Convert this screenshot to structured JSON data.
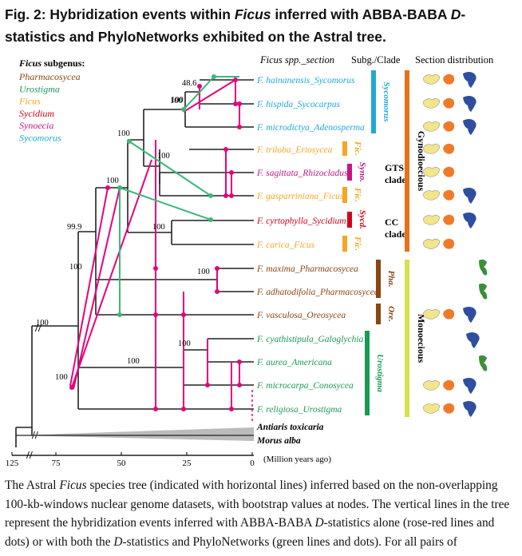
{
  "figure": {
    "title_prefix": "Fig. 2: Hybridization events within ",
    "title_genus": "Ficus",
    "title_mid": " inferred with ABBA-BABA ",
    "title_d": "D",
    "title_suffix": "-statistics and PhyloNetworks exhibited on the Astral tree.",
    "caption_p1": "The Astral ",
    "caption_genus": "Ficus",
    "caption_p2": " species tree (indicated with horizontal lines) inferred based on the non-overlapping 100-kb-windows nuclear genome datasets, with bootstrap values at nodes. The vertical lines in the tree represent the hybridization events inferred with ABBA-BABA ",
    "caption_d1": "D",
    "caption_p3": "-statistics alone (rose-red lines and dots) or with both the ",
    "caption_d2": "D",
    "caption_p4": "-statistics and PhyloNetworks (green lines and dots). For all pairs of"
  },
  "headers": {
    "species": "Ficus spp._section",
    "subg_clade": "Subg./Clade",
    "distribution": "Section distribution"
  },
  "legend": {
    "title": "Ficus subgenus:",
    "items": [
      {
        "label": "Pharmacosycea",
        "color": "#8b4513"
      },
      {
        "label": "Urostigma",
        "color": "#1a9a55"
      },
      {
        "label": "Ficus",
        "color": "#f5a623"
      },
      {
        "label": "Sycidium",
        "color": "#d0021b"
      },
      {
        "label": "Synoecia",
        "color": "#c71585"
      },
      {
        "label": "Sycomorus",
        "color": "#1fa8d8"
      }
    ]
  },
  "taxa": [
    {
      "label": "F. hainanensis_Sycomorus",
      "color": "#1fa8d8"
    },
    {
      "label": "F. hispida_Sycocarpus",
      "color": "#1fa8d8"
    },
    {
      "label": "F. microdictya_Adenosperma",
      "color": "#1fa8d8"
    },
    {
      "label": "F. triloba_Eriosycea",
      "color": "#f5a623"
    },
    {
      "label": "F. sagittata_Rhizocladus",
      "color": "#c71585"
    },
    {
      "label": "F. gasparriniana_Ficus",
      "color": "#f5a623"
    },
    {
      "label": "F. cyrtophylla_Sycidium",
      "color": "#d0021b"
    },
    {
      "label": "F. carica_Ficus",
      "color": "#f5a623"
    },
    {
      "label": "F. maxima_Pharmacosycea",
      "color": "#8b4513"
    },
    {
      "label": "F. adhatodifolia_Pharmacosycea",
      "color": "#8b4513"
    },
    {
      "label": "F. vasculosa_Oreosycea",
      "color": "#8b4513"
    },
    {
      "label": "F. cyathistipula_Galoglychia",
      "color": "#1a9a55"
    },
    {
      "label": "F. aurea_Americana",
      "color": "#1a9a55"
    },
    {
      "label": "F. microcarpa_Conosycea",
      "color": "#1a9a55"
    },
    {
      "label": "F. religiosa_Urostigma",
      "color": "#1a9a55"
    }
  ],
  "outgroups": [
    "Antiaris toxicaria",
    "Morus alba"
  ],
  "bootstrap": [
    "48.6",
    "100",
    "100",
    "100",
    "100",
    "100",
    "99.9",
    "100",
    "100",
    "100",
    "100",
    "100",
    "100",
    "100"
  ],
  "subgenus_bars": [
    {
      "label": "Sycomorus",
      "color": "#1fa8d8"
    },
    {
      "label": "Fic.",
      "color": "#f5a623"
    },
    {
      "label": "Syno.",
      "color": "#c71585"
    },
    {
      "label": "Fic.",
      "color": "#f5a623"
    },
    {
      "label": "Sycd.",
      "color": "#d0021b"
    },
    {
      "label": "Fic.",
      "color": "#f5a623"
    },
    {
      "label": "Pha.",
      "color": "#8b4513"
    },
    {
      "label": "Ore.",
      "color": "#8b4513"
    },
    {
      "label": "Urostigma",
      "color": "#1a9a55"
    }
  ],
  "clades": [
    {
      "line1": "GTS",
      "line2": "clade"
    },
    {
      "line1": "CC",
      "line2": "clade"
    }
  ],
  "breeding": [
    {
      "label": "Gynodioecious",
      "color": "#e8701a"
    },
    {
      "label": "Monoecious",
      "color": "#d4e14a"
    }
  ],
  "axis": {
    "ticks": [
      "125",
      "75",
      "50",
      "25",
      "0"
    ],
    "label": "(Million years ago)"
  },
  "colors": {
    "rose_red": "#e6007e",
    "green": "#3cb878",
    "tree": "#222222",
    "asia": "#f2e58a",
    "africa": "#2f4ea0",
    "america": "#3a8f3a",
    "orange_map": "#f07a2a"
  }
}
